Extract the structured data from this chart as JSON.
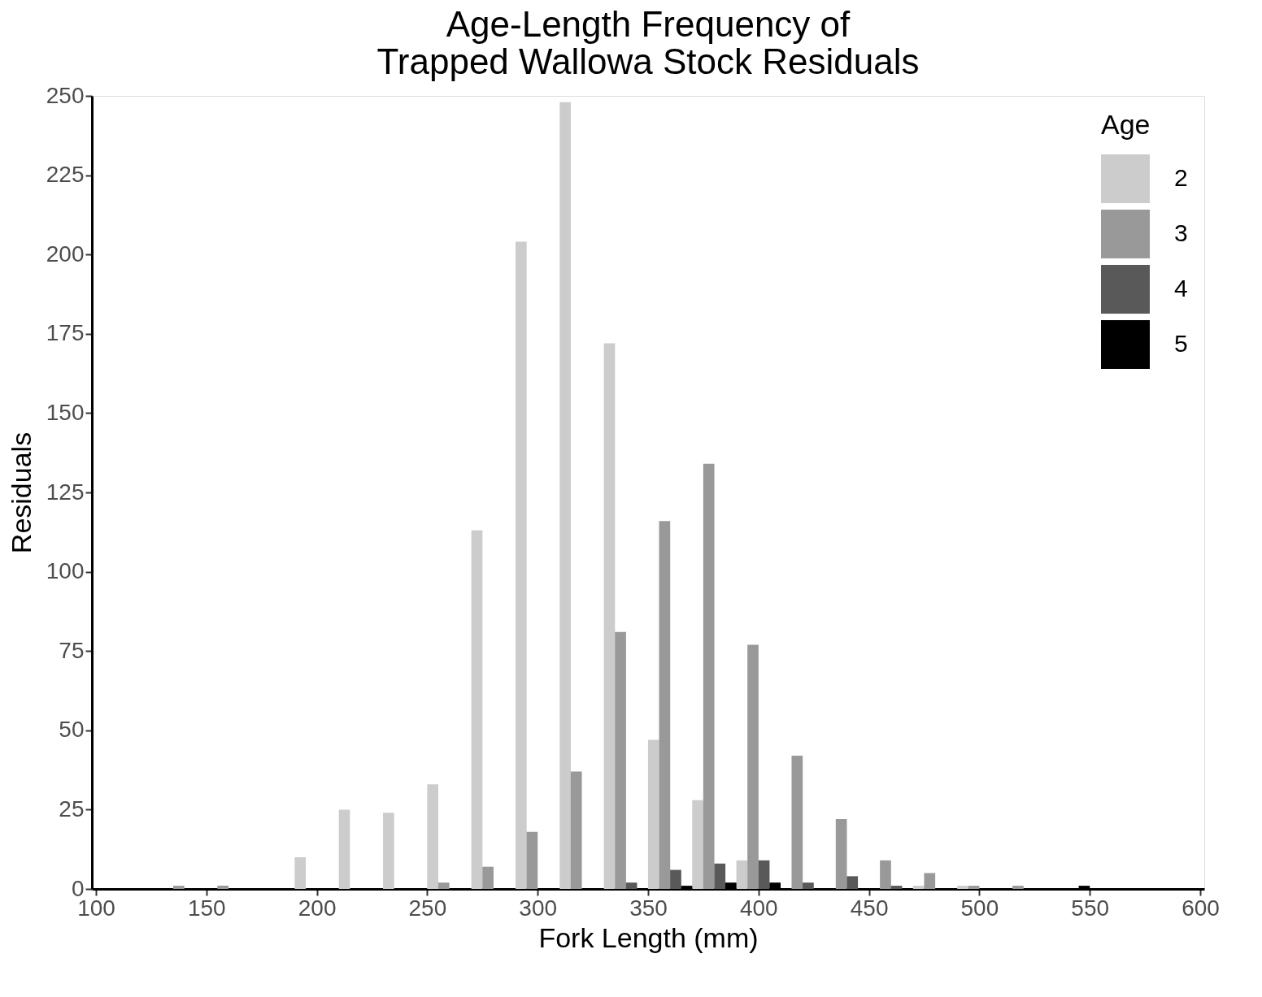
{
  "chart_data": {
    "type": "bar",
    "title": [
      "Age-Length Frequency of",
      "Trapped Wallowa Stock Residuals"
    ],
    "xlabel": "Fork Length (mm)",
    "ylabel": "Residuals",
    "legend_title": "Age",
    "xlim": [
      100,
      600
    ],
    "xticks": [
      100,
      150,
      200,
      250,
      300,
      350,
      400,
      450,
      500,
      550,
      600
    ],
    "ylim": [
      0,
      250
    ],
    "yticks": [
      0,
      25,
      50,
      75,
      100,
      125,
      150,
      175,
      200,
      225,
      250
    ],
    "series": [
      {
        "name": "2",
        "color": "#cccccc",
        "x": [
          192.5,
          212.5,
          232.5,
          252.5,
          272.5,
          292.5,
          312.5,
          332.5,
          352.5,
          372.5,
          392.5,
          472.5,
          492.5
        ],
        "values": [
          10,
          25,
          24,
          33,
          113,
          204,
          248,
          172,
          47,
          28,
          9,
          1,
          1
        ]
      },
      {
        "name": "3",
        "color": "#999999",
        "x": [
          137.5,
          157.5,
          257.5,
          277.5,
          297.5,
          317.5,
          337.5,
          357.5,
          377.5,
          397.5,
          417.5,
          437.5,
          457.5,
          477.5,
          497.5,
          517.5
        ],
        "values": [
          1,
          1,
          2,
          7,
          18,
          37,
          81,
          116,
          134,
          77,
          42,
          22,
          9,
          5,
          1,
          1
        ]
      },
      {
        "name": "4",
        "color": "#595959",
        "x": [
          342.5,
          362.5,
          382.5,
          402.5,
          422.5,
          442.5,
          462.5
        ],
        "values": [
          2,
          6,
          8,
          9,
          2,
          4,
          1
        ]
      },
      {
        "name": "5",
        "color": "#000000",
        "x": [
          367.5,
          387.5,
          407.5,
          547.5
        ],
        "values": [
          1,
          2,
          2,
          1
        ]
      }
    ],
    "grid": false,
    "legend": "top right"
  }
}
